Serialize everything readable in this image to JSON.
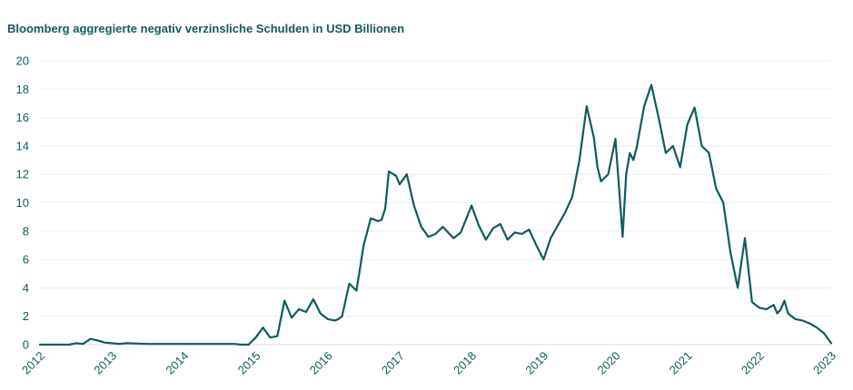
{
  "chart_data": {
    "type": "line",
    "title": "Bloomberg aggregierte negativ verzinsliche Schulden in USD Billionen",
    "xlabel": "",
    "ylabel": "",
    "ylim": [
      0,
      20
    ],
    "y_ticks": [
      "0",
      "2",
      "4",
      "6",
      "8",
      "10",
      "12",
      "14",
      "16",
      "18",
      "20"
    ],
    "x_ticks": [
      "2012",
      "2013",
      "2014",
      "2015",
      "2016",
      "2017",
      "2018",
      "2019",
      "2020",
      "2021",
      "2022",
      "2023"
    ],
    "grid": true,
    "color": "#0f5c5c",
    "series": [
      {
        "name": "Negativ verzinsliche Schulden",
        "x": [
          2012.0,
          2012.4,
          2012.5,
          2012.6,
          2012.7,
          2012.8,
          2012.9,
          2013.0,
          2013.1,
          2013.2,
          2013.5,
          2014.0,
          2014.5,
          2014.7,
          2014.8,
          2014.9,
          2015.0,
          2015.1,
          2015.2,
          2015.3,
          2015.4,
          2015.5,
          2015.6,
          2015.7,
          2015.8,
          2015.9,
          2016.0,
          2016.1,
          2016.15,
          2016.2,
          2016.3,
          2016.4,
          2016.5,
          2016.6,
          2016.7,
          2016.75,
          2016.8,
          2016.85,
          2016.95,
          2017.0,
          2017.1,
          2017.2,
          2017.3,
          2017.4,
          2017.5,
          2017.6,
          2017.75,
          2017.85,
          2018.0,
          2018.1,
          2018.2,
          2018.3,
          2018.4,
          2018.5,
          2018.6,
          2018.7,
          2018.8,
          2018.9,
          2019.0,
          2019.1,
          2019.2,
          2019.3,
          2019.4,
          2019.5,
          2019.6,
          2019.7,
          2019.75,
          2019.8,
          2019.9,
          2020.0,
          2020.1,
          2020.15,
          2020.2,
          2020.25,
          2020.3,
          2020.4,
          2020.5,
          2020.6,
          2020.7,
          2020.8,
          2020.9,
          2021.0,
          2021.1,
          2021.2,
          2021.3,
          2021.4,
          2021.5,
          2021.6,
          2021.7,
          2021.8,
          2021.9,
          2022.0,
          2022.1,
          2022.2,
          2022.25,
          2022.3,
          2022.35,
          2022.4,
          2022.5,
          2022.6,
          2022.7,
          2022.8,
          2022.9,
          2023.0
        ],
        "values": [
          0.0,
          0.0,
          0.1,
          0.05,
          0.4,
          0.3,
          0.15,
          0.1,
          0.05,
          0.1,
          0.05,
          0.05,
          0.05,
          0.05,
          0.0,
          0.0,
          0.5,
          1.2,
          0.5,
          0.6,
          3.1,
          1.9,
          2.5,
          2.3,
          3.2,
          2.2,
          1.8,
          1.7,
          1.8,
          2.0,
          4.3,
          3.8,
          7.0,
          8.9,
          8.7,
          8.8,
          9.6,
          12.2,
          11.9,
          11.3,
          12.0,
          9.8,
          8.3,
          7.6,
          7.8,
          8.3,
          7.5,
          7.9,
          9.8,
          8.4,
          7.4,
          8.2,
          8.5,
          7.4,
          7.9,
          7.8,
          8.1,
          7.0,
          6.0,
          7.5,
          8.4,
          9.3,
          10.4,
          13.0,
          16.8,
          14.6,
          12.5,
          11.5,
          12.0,
          14.5,
          7.6,
          12.0,
          13.5,
          13.0,
          14.0,
          16.8,
          18.3,
          16.0,
          13.5,
          14.0,
          12.5,
          15.5,
          16.7,
          14.0,
          13.5,
          11.0,
          10.0,
          6.5,
          4.0,
          7.5,
          3.0,
          2.6,
          2.5,
          2.8,
          2.2,
          2.5,
          3.1,
          2.2,
          1.8,
          1.7,
          1.5,
          1.2,
          0.8,
          0.1
        ]
      }
    ]
  }
}
